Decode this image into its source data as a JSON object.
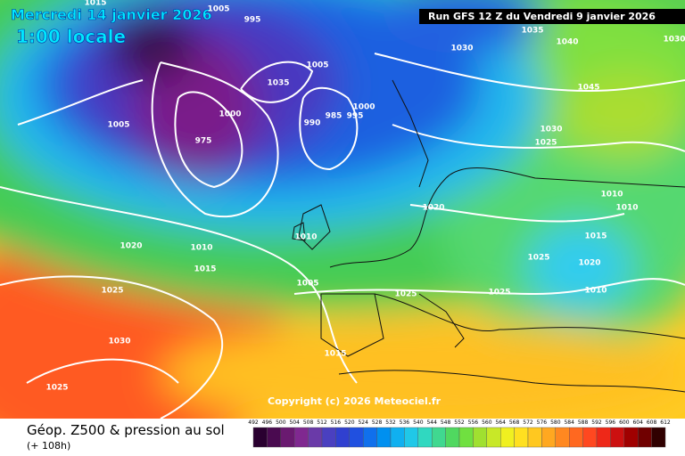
{
  "header": {
    "date": "Mercredi 14 janvier 2026",
    "time": "1:00 locale",
    "run": "Run GFS 12 Z du Vendredi 9 janvier 2026"
  },
  "copyright": "Copyright (c) 2026 Meteociel.fr",
  "footer": {
    "title": "Géop. Z500 & pression au sol",
    "lead": "(+ 108h)"
  },
  "isobar_labels": [
    1015,
    1005,
    995,
    1030,
    1035,
    1040,
    1030,
    1045,
    1005,
    1035,
    1000,
    1000,
    990,
    985,
    995,
    975,
    1005,
    1030,
    1025,
    1020,
    1010,
    1010,
    1010,
    1020,
    1010,
    1015,
    1015,
    1025,
    1020,
    1005,
    1025,
    1025,
    1025,
    1010,
    1030,
    1015,
    1025
  ],
  "colorbar": {
    "bins": [
      492,
      496,
      500,
      504,
      508,
      512,
      516,
      520,
      524,
      528,
      532,
      536,
      540,
      544,
      548,
      552,
      556,
      560,
      564,
      568,
      572,
      576,
      580,
      584,
      588,
      592,
      596,
      600,
      604,
      608,
      612
    ],
    "colors": [
      "#2a0030",
      "#4a0a50",
      "#6a1a70",
      "#802890",
      "#6a3aa8",
      "#4a40c0",
      "#3040d0",
      "#2050e0",
      "#1070ec",
      "#0090f0",
      "#10b0f0",
      "#20c8e8",
      "#30d8c0",
      "#40d890",
      "#50d860",
      "#70e040",
      "#a0e030",
      "#c8e828",
      "#f0f020",
      "#ffe020",
      "#ffc820",
      "#ffa820",
      "#ff8820",
      "#ff6820",
      "#ff4820",
      "#ee2818",
      "#cc1010",
      "#a00000",
      "#700000",
      "#300000"
    ]
  }
}
